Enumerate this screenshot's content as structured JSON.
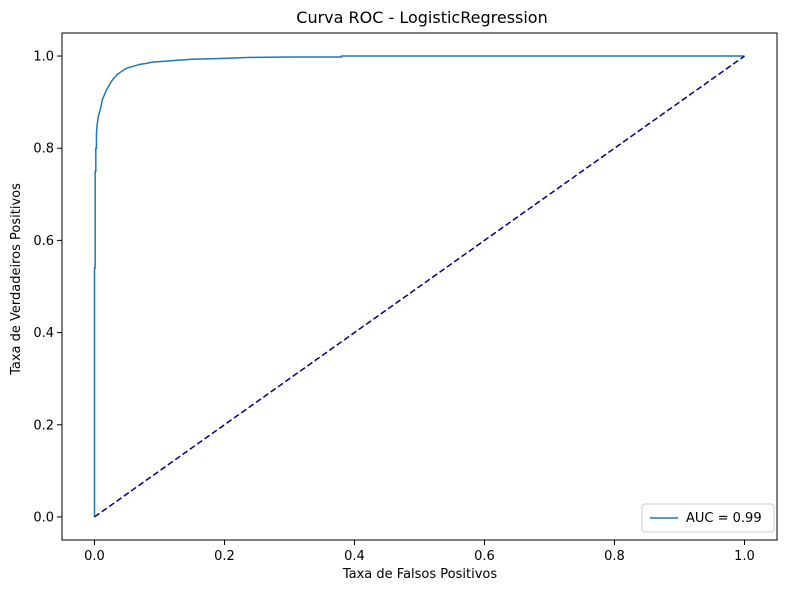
{
  "chart_data": {
    "type": "line",
    "title": "Curva ROC - LogisticRegression",
    "xlabel": "Taxa de Falsos Positivos",
    "ylabel": "Taxa de Verdadeiros Positivos",
    "xlim": [
      -0.05,
      1.05
    ],
    "ylim": [
      -0.05,
      1.05
    ],
    "grid": false,
    "legend_position": "lower right",
    "xticks": [
      "0.0",
      "0.2",
      "0.4",
      "0.6",
      "0.8",
      "1.0"
    ],
    "yticks": [
      "0.0",
      "0.2",
      "0.4",
      "0.6",
      "0.8",
      "1.0"
    ],
    "series": [
      {
        "name": "AUC = 0.99",
        "color": "#1f77b4",
        "style": "solid",
        "x": [
          0.0,
          0.0,
          0.001,
          0.001,
          0.002,
          0.002,
          0.003,
          0.003,
          0.004,
          0.005,
          0.006,
          0.008,
          0.01,
          0.012,
          0.015,
          0.018,
          0.022,
          0.026,
          0.03,
          0.035,
          0.04,
          0.045,
          0.05,
          0.06,
          0.07,
          0.08,
          0.09,
          0.1,
          0.12,
          0.15,
          0.2,
          0.24,
          0.3,
          0.38,
          0.38,
          0.5,
          0.7,
          1.0
        ],
        "y": [
          0.0,
          0.54,
          0.54,
          0.75,
          0.75,
          0.8,
          0.8,
          0.83,
          0.85,
          0.86,
          0.87,
          0.88,
          0.89,
          0.905,
          0.915,
          0.925,
          0.935,
          0.945,
          0.952,
          0.96,
          0.965,
          0.97,
          0.974,
          0.978,
          0.982,
          0.984,
          0.987,
          0.988,
          0.99,
          0.993,
          0.995,
          0.997,
          0.998,
          0.998,
          1.0,
          1.0,
          1.0,
          1.0
        ]
      },
      {
        "name": "",
        "color": "#000080",
        "style": "dashed",
        "x": [
          0.0,
          1.0
        ],
        "y": [
          0.0,
          1.0
        ]
      }
    ]
  }
}
